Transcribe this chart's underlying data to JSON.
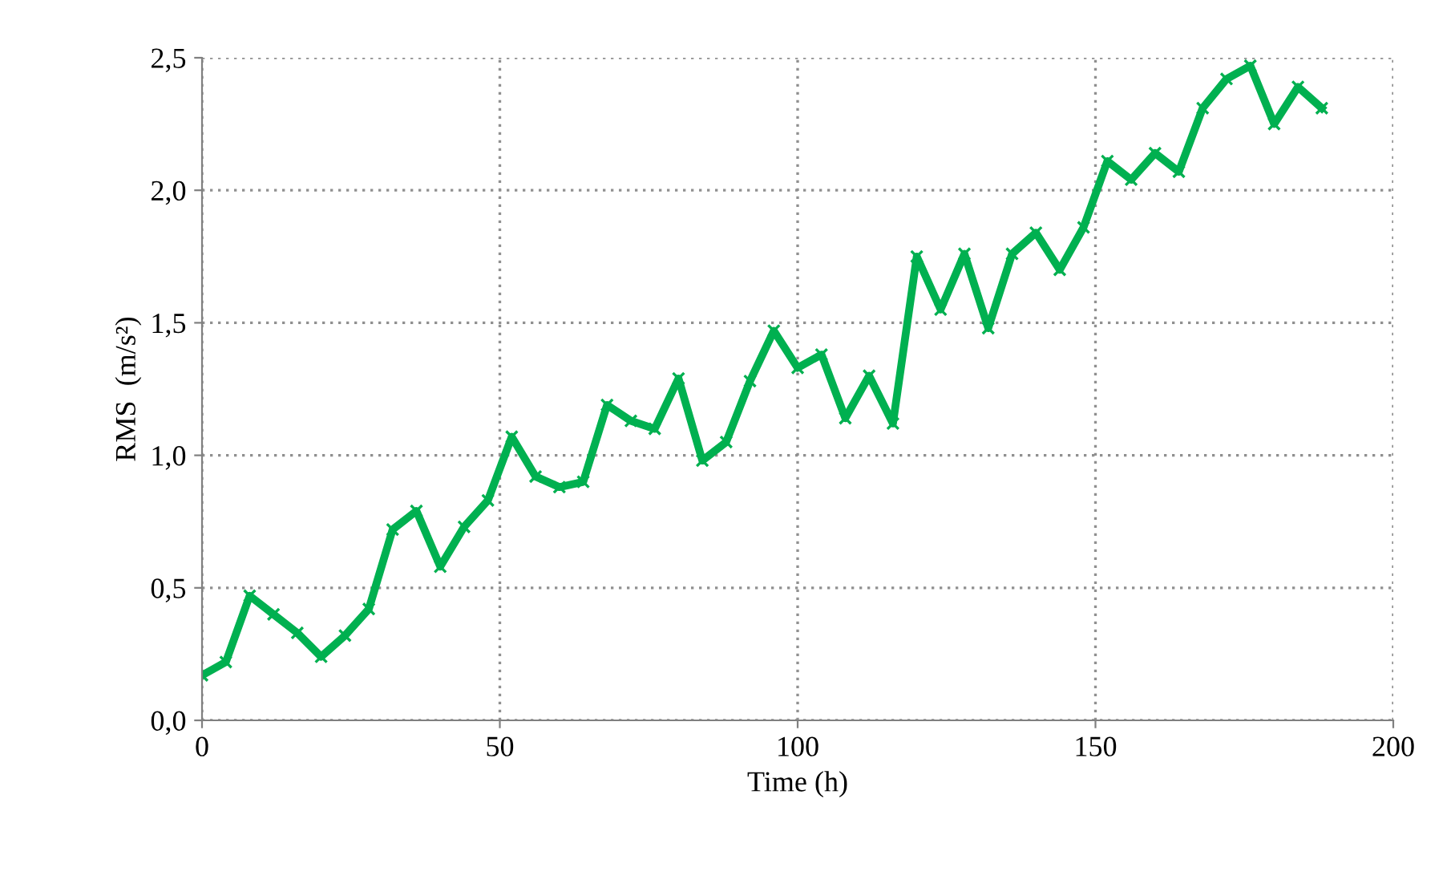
{
  "chart_data": {
    "type": "line",
    "xlabel": "Time (h)",
    "ylabel": "RMS  (m/s²)",
    "x": [
      0,
      4,
      8,
      12,
      16,
      20,
      24,
      28,
      32,
      36,
      40,
      44,
      48,
      52,
      56,
      60,
      64,
      68,
      72,
      76,
      80,
      84,
      88,
      92,
      96,
      100,
      104,
      108,
      112,
      116,
      120,
      124,
      128,
      132,
      136,
      140,
      144,
      148,
      152,
      156,
      160,
      164,
      168,
      172,
      176,
      180,
      184,
      188
    ],
    "series": [
      {
        "color": "#00b050",
        "values": [
          0.17,
          0.22,
          0.47,
          0.4,
          0.33,
          0.24,
          0.32,
          0.42,
          0.72,
          0.79,
          0.58,
          0.73,
          0.83,
          1.07,
          0.92,
          0.88,
          0.9,
          1.19,
          1.13,
          1.1,
          1.29,
          0.98,
          1.05,
          1.28,
          1.47,
          1.33,
          1.38,
          1.14,
          1.3,
          1.12,
          1.75,
          1.55,
          1.76,
          1.48,
          1.76,
          1.84,
          1.7,
          1.86,
          2.11,
          2.04,
          2.14,
          2.07,
          2.31,
          2.42,
          2.47,
          2.25,
          2.39,
          2.31
        ]
      }
    ],
    "xlim": [
      0,
      200
    ],
    "xticks": [
      0,
      50,
      100,
      150,
      200
    ],
    "ylim": [
      0,
      2.5
    ],
    "yticks": [
      {
        "value": 0,
        "label": "0,0"
      },
      {
        "value": 0.5,
        "label": "0,5"
      },
      {
        "value": 1.0,
        "label": "1,0"
      },
      {
        "value": 1.5,
        "label": "1,5"
      },
      {
        "value": 2.0,
        "label": "2,0"
      },
      {
        "value": 2.5,
        "label": "2,5"
      }
    ],
    "grid": true,
    "marker": "cross",
    "line_style": "solid"
  }
}
